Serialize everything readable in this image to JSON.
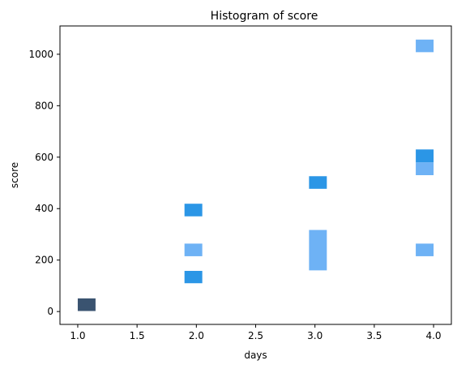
{
  "chart_data": {
    "type": "heatmap",
    "title": "Histogram of score",
    "xlabel": "days",
    "ylabel": "score",
    "xlim": [
      0.85,
      4.15
    ],
    "ylim": [
      -50,
      1110
    ],
    "xticks": [
      1.0,
      1.5,
      2.0,
      2.5,
      3.0,
      3.5,
      4.0
    ],
    "xtick_labels": [
      "1.0",
      "1.5",
      "2.0",
      "2.5",
      "3.0",
      "3.5",
      "4.0"
    ],
    "yticks": [
      0,
      200,
      400,
      600,
      800,
      1000
    ],
    "ytick_labels": [
      "0",
      "200",
      "400",
      "600",
      "800",
      "1000"
    ],
    "grid": false,
    "legend": "none",
    "bin_width_x": 0.15,
    "bins": [
      {
        "x": [
          1.0,
          1.15
        ],
        "y": [
          2,
          51
        ],
        "count": 3,
        "color": "#3a5370"
      },
      {
        "x": [
          1.9,
          2.05
        ],
        "y": [
          110,
          158
        ],
        "count": 2,
        "color": "#2b96e6"
      },
      {
        "x": [
          1.9,
          2.05
        ],
        "y": [
          215,
          264
        ],
        "count": 1,
        "color": "#6eb2f5"
      },
      {
        "x": [
          1.9,
          2.05
        ],
        "y": [
          370,
          419
        ],
        "count": 2,
        "color": "#2b96e6"
      },
      {
        "x": [
          2.95,
          3.1
        ],
        "y": [
          160,
          317
        ],
        "count": 1,
        "color": "#6eb2f5"
      },
      {
        "x": [
          2.95,
          3.1
        ],
        "y": [
          477,
          526
        ],
        "count": 2,
        "color": "#2b96e6"
      },
      {
        "x": [
          3.85,
          4.0
        ],
        "y": [
          215,
          264
        ],
        "count": 1,
        "color": "#6eb2f5"
      },
      {
        "x": [
          3.85,
          4.0
        ],
        "y": [
          530,
          580
        ],
        "count": 1,
        "color": "#6eb2f5"
      },
      {
        "x": [
          3.85,
          4.0
        ],
        "y": [
          580,
          630
        ],
        "count": 2,
        "color": "#2b96e6"
      },
      {
        "x": [
          3.85,
          4.0
        ],
        "y": [
          1008,
          1057
        ],
        "count": 1,
        "color": "#6eb2f5"
      }
    ]
  }
}
